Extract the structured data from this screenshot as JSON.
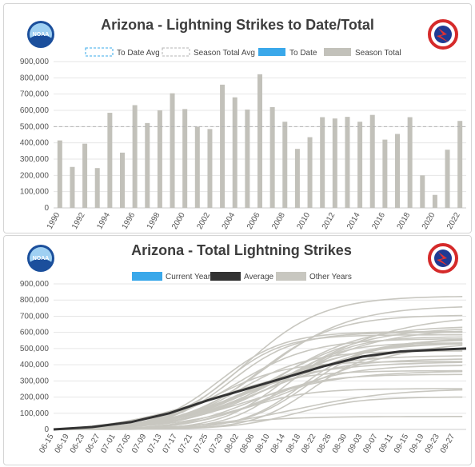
{
  "charts": [
    {
      "title": "Arizona - Lightning Strikes to Date/Total",
      "legend": [
        "To Date Avg",
        "Season Total Avg",
        "To Date",
        "Season Total"
      ]
    },
    {
      "title": "Arizona - Total Lightning Strikes",
      "legend": [
        "Current Year",
        "Average",
        "Other Years"
      ]
    }
  ],
  "colors": {
    "season_total": "#c2c1ba",
    "to_date": "#3aa8ea",
    "average": "#333333",
    "other_years": "#c8c7c0",
    "avg_line": "#b3b3b3",
    "grid": "#e6e6e6"
  },
  "logos": [
    "noaa-logo",
    "national-weather-service-logo"
  ],
  "chart_data": [
    {
      "type": "bar",
      "title": "Arizona - Lightning Strikes to Date/Total",
      "categories": [
        "1990",
        "1991",
        "1992",
        "1993",
        "1994",
        "1995",
        "1996",
        "1997",
        "1998",
        "1999",
        "2000",
        "2001",
        "2002",
        "2003",
        "2004",
        "2005",
        "2006",
        "2007",
        "2008",
        "2009",
        "2010",
        "2011",
        "2012",
        "2013",
        "2014",
        "2015",
        "2016",
        "2017",
        "2018",
        "2019",
        "2020",
        "2021",
        "2022"
      ],
      "x_tick_labels": [
        "1990",
        "1992",
        "1994",
        "1996",
        "1998",
        "2000",
        "2002",
        "2004",
        "2006",
        "2008",
        "2010",
        "2012",
        "2014",
        "2016",
        "2018",
        "2020",
        "2022"
      ],
      "series": [
        {
          "name": "Season Total",
          "values": [
            415000,
            252000,
            395000,
            245000,
            585000,
            340000,
            632000,
            522000,
            600000,
            705000,
            608000,
            500000,
            485000,
            758000,
            680000,
            605000,
            822000,
            620000,
            530000,
            363000,
            435000,
            558000,
            550000,
            560000,
            530000,
            572000,
            420000,
            455000,
            558000,
            200000,
            80000,
            358000,
            535000
          ]
        }
      ],
      "season_total_avg": 500000,
      "yticks": [
        "0",
        "100,000",
        "200,000",
        "300,000",
        "400,000",
        "500,000",
        "600,000",
        "700,000",
        "800,000",
        "900,000"
      ],
      "ylim": [
        0,
        900000
      ],
      "grid": true,
      "legend_position": "top"
    },
    {
      "type": "line",
      "title": "Arizona - Total Lightning Strikes",
      "x_tick_labels": [
        "06-15",
        "06-19",
        "06-23",
        "06-27",
        "07-01",
        "07-05",
        "07-09",
        "07-13",
        "07-17",
        "07-21",
        "07-25",
        "07-29",
        "08-02",
        "08-06",
        "08-10",
        "08-14",
        "08-18",
        "08-22",
        "08-26",
        "08-30",
        "09-03",
        "09-07",
        "09-11",
        "09-15",
        "09-19",
        "09-23",
        "09-27"
      ],
      "x_range": [
        "06-15",
        "09-30"
      ],
      "series": [
        {
          "name": "Average",
          "x": [
            "06-15",
            "06-25",
            "07-05",
            "07-15",
            "07-25",
            "08-04",
            "08-14",
            "08-24",
            "09-03",
            "09-13",
            "09-23",
            "09-30"
          ],
          "values": [
            0,
            15000,
            45000,
            100000,
            180000,
            250000,
            320000,
            390000,
            450000,
            482000,
            493000,
            500000
          ]
        }
      ],
      "other_years_count": 33,
      "yticks": [
        "0",
        "100,000",
        "200,000",
        "300,000",
        "400,000",
        "500,000",
        "600,000",
        "700,000",
        "800,000",
        "900,000"
      ],
      "ylim": [
        0,
        900000
      ],
      "grid": true,
      "legend_position": "top"
    }
  ]
}
